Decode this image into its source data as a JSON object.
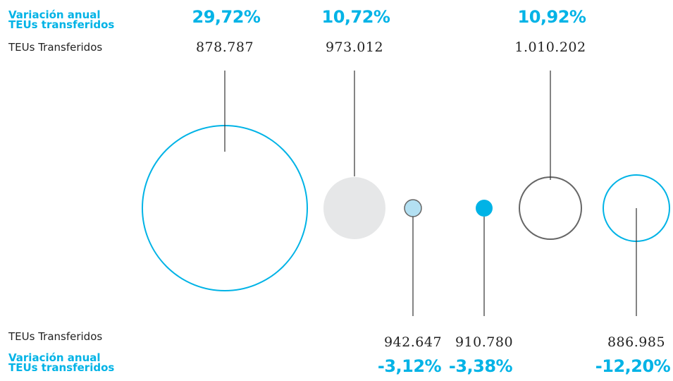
{
  "labels": {
    "top_variation": "Variación anual\nTEUs transferidos",
    "top_teus": "TEUs Transferidos",
    "bottom_teus": "TEUs Transferidos",
    "bottom_variation": "Variación anual\nTEUs transferidos"
  },
  "colors": {
    "accent": "#00b3e6",
    "light_blue": "#b3e0f2",
    "gray_fill": "#e6e7e8",
    "dark_gray": "#666666",
    "line": "#333333"
  },
  "chart_data": {
    "type": "bubble",
    "series": [
      {
        "teus": "878.787",
        "variation": "29,72%",
        "style": "blue-outline",
        "label_pos": "top"
      },
      {
        "teus": "973.012",
        "variation": "10,72%",
        "style": "gray-filled",
        "label_pos": "top"
      },
      {
        "teus": "942.647",
        "variation": "-3,12%",
        "style": "lightblue-filled-outline",
        "label_pos": "bottom"
      },
      {
        "teus": "910.780",
        "variation": "-3,38%",
        "style": "blue-filled",
        "label_pos": "bottom"
      },
      {
        "teus": "1.010.202",
        "variation": "10,92%",
        "style": "gray-outline",
        "label_pos": "top"
      },
      {
        "teus": "886.985",
        "variation": "-12,20%",
        "style": "blue-outline",
        "label_pos": "bottom"
      }
    ]
  }
}
